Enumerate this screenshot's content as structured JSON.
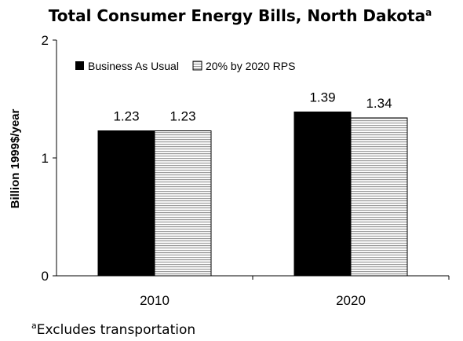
{
  "chart_data": {
    "type": "bar",
    "title": "Total Consumer Energy Bills, North Dakota",
    "title_superscript": "a",
    "ylabel": "Billion 1999$/year",
    "xlabel": "",
    "ylim": [
      0,
      2
    ],
    "yticks": [
      "0",
      "1",
      "2"
    ],
    "categories": [
      "2010",
      "2020"
    ],
    "series": [
      {
        "name": "Business As Usual",
        "values": [
          1.23,
          1.39
        ],
        "labels": [
          "1.23",
          "1.39"
        ],
        "color": "#000000",
        "pattern": "solid"
      },
      {
        "name": "20% by 2020 RPS",
        "values": [
          1.23,
          1.34
        ],
        "labels": [
          "1.23",
          "1.34"
        ],
        "color": "#d8d8d8",
        "pattern": "horizontal-hatch"
      }
    ],
    "legend_position": "top-left",
    "grid": false,
    "footnote_marker": "a",
    "footnote": "Excludes transportation"
  }
}
